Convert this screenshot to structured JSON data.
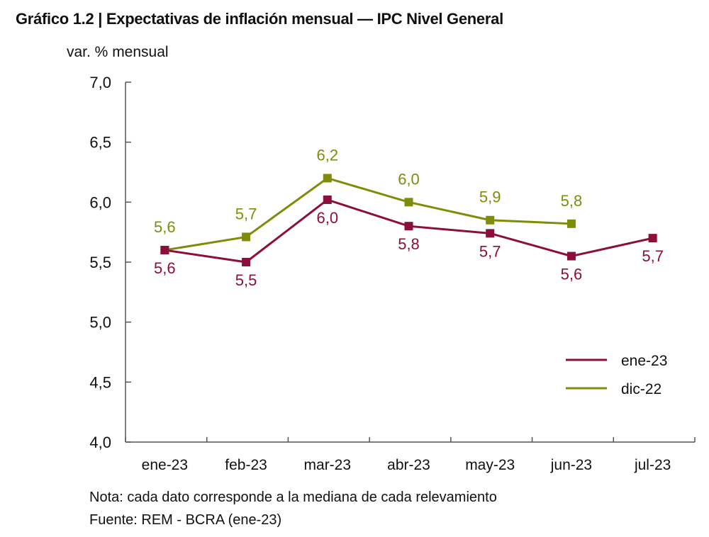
{
  "title": "Gráfico 1.2 | Expectativas de inflación mensual — IPC Nivel General",
  "chart_data": {
    "type": "line",
    "title": "Gráfico 1.2 | Expectativas de inflación mensual — IPC Nivel General",
    "ylabel": "var. % mensual",
    "xlabel": "",
    "ylim": [
      4.0,
      7.0
    ],
    "yticks": [
      "4,0",
      "4,5",
      "5,0",
      "5,5",
      "6,0",
      "6,5",
      "7,0"
    ],
    "categories": [
      "ene-23",
      "feb-23",
      "mar-23",
      "abr-23",
      "may-23",
      "jun-23",
      "jul-23"
    ],
    "legend_position": "bottom-right",
    "grid": false,
    "series": [
      {
        "name": "ene-23",
        "color": "#8C0E3C",
        "values": [
          5.6,
          5.5,
          6.02,
          5.8,
          5.74,
          5.55,
          5.7
        ],
        "labels": [
          "5,6",
          "5,5",
          "6,0",
          "5,8",
          "5,7",
          "5,6",
          "5,7"
        ],
        "label_position": "below"
      },
      {
        "name": "dic-22",
        "color": "#7F8C0A",
        "values": [
          5.6,
          5.71,
          6.2,
          6.0,
          5.85,
          5.82,
          null
        ],
        "labels": [
          "5,6",
          "5,7",
          "6,2",
          "6,0",
          "5,9",
          "5,8",
          null
        ],
        "label_position": "above"
      }
    ]
  },
  "notes": [
    "Nota: cada dato corresponde a la mediana de cada relevamiento",
    "Fuente: REM - BCRA (ene-23)"
  ]
}
